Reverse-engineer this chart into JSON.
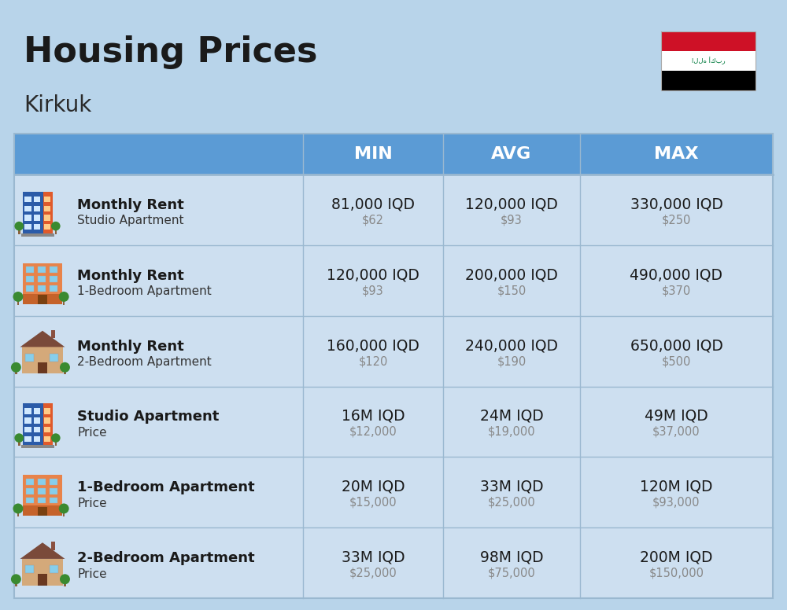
{
  "title": "Housing Prices",
  "subtitle": "Kirkuk",
  "bg_color": "#b8d4ea",
  "header_bg": "#5b9bd5",
  "header_text_color": "#ffffff",
  "row_bg": "#cddff0",
  "line_color": "#9ab8d0",
  "col_headers": [
    "MIN",
    "AVG",
    "MAX"
  ],
  "rows": [
    {
      "icon": "studio_blue",
      "label_bold": "Monthly Rent",
      "label_sub": "Studio Apartment",
      "min_iqd": "81,000 IQD",
      "min_usd": "$62",
      "avg_iqd": "120,000 IQD",
      "avg_usd": "$93",
      "max_iqd": "330,000 IQD",
      "max_usd": "$250"
    },
    {
      "icon": "apartment_orange",
      "label_bold": "Monthly Rent",
      "label_sub": "1-Bedroom Apartment",
      "min_iqd": "120,000 IQD",
      "min_usd": "$93",
      "avg_iqd": "200,000 IQD",
      "avg_usd": "$150",
      "max_iqd": "490,000 IQD",
      "max_usd": "$370"
    },
    {
      "icon": "house_brown",
      "label_bold": "Monthly Rent",
      "label_sub": "2-Bedroom Apartment",
      "min_iqd": "160,000 IQD",
      "min_usd": "$120",
      "avg_iqd": "240,000 IQD",
      "avg_usd": "$190",
      "max_iqd": "650,000 IQD",
      "max_usd": "$500"
    },
    {
      "icon": "studio_blue",
      "label_bold": "Studio Apartment",
      "label_sub": "Price",
      "min_iqd": "16M IQD",
      "min_usd": "$12,000",
      "avg_iqd": "24M IQD",
      "avg_usd": "$19,000",
      "max_iqd": "49M IQD",
      "max_usd": "$37,000"
    },
    {
      "icon": "apartment_orange",
      "label_bold": "1-Bedroom Apartment",
      "label_sub": "Price",
      "min_iqd": "20M IQD",
      "min_usd": "$15,000",
      "avg_iqd": "33M IQD",
      "avg_usd": "$25,000",
      "max_iqd": "120M IQD",
      "max_usd": "$93,000"
    },
    {
      "icon": "house_brown",
      "label_bold": "2-Bedroom Apartment",
      "label_sub": "Price",
      "min_iqd": "33M IQD",
      "min_usd": "$25,000",
      "avg_iqd": "98M IQD",
      "avg_usd": "$75,000",
      "max_iqd": "200M IQD",
      "max_usd": "$150,000"
    }
  ],
  "flag_colors": [
    "#ce1126",
    "#ffffff",
    "#000000"
  ],
  "flag_emblem_color": "#007a3d",
  "flag_emblem_text": "الله أكبر"
}
